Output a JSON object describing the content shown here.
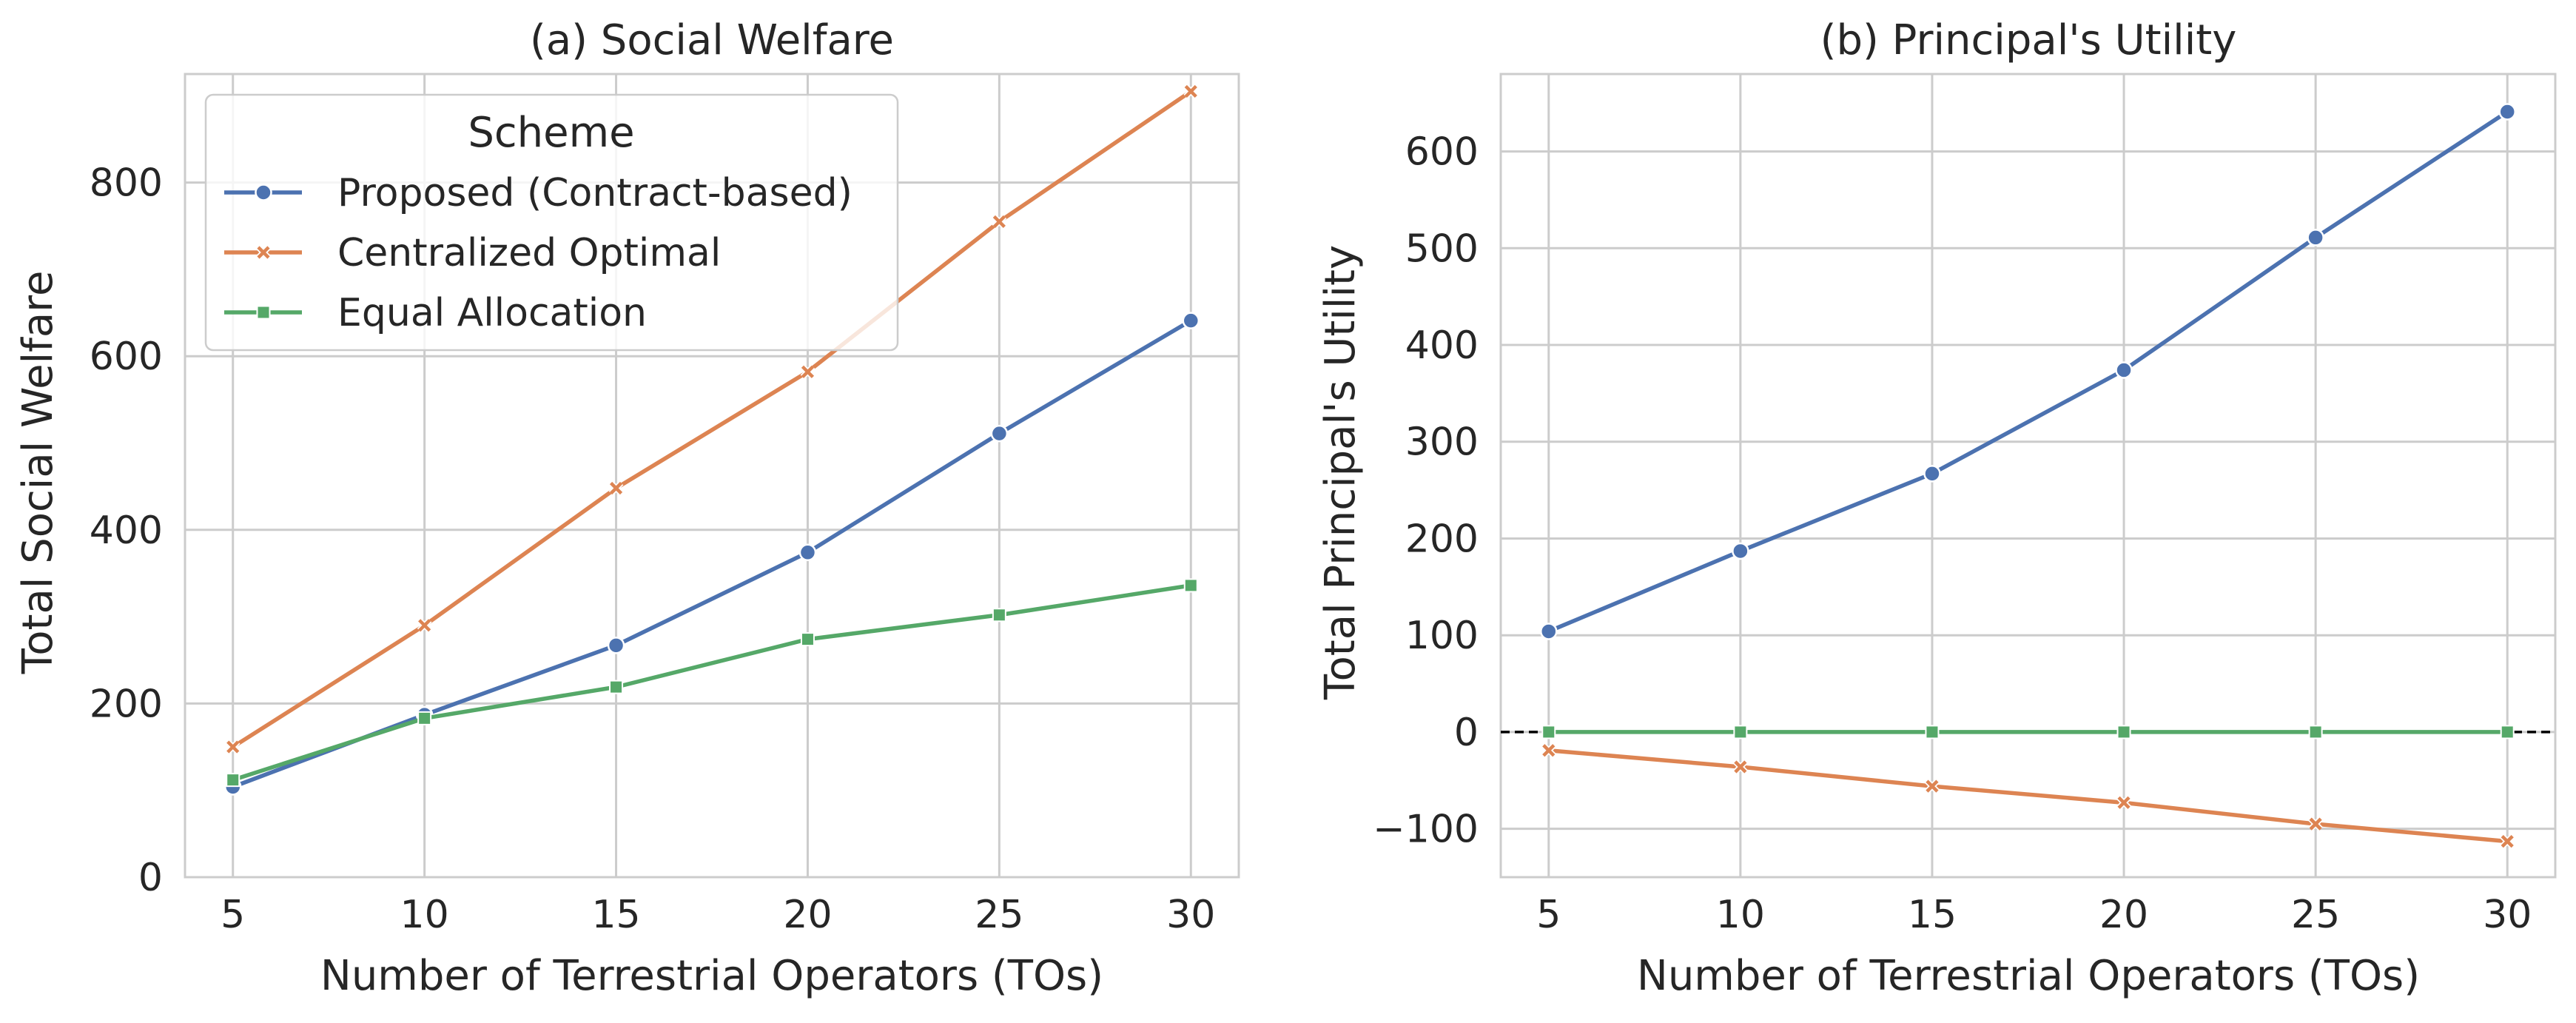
{
  "chart_data": [
    {
      "type": "line",
      "title": "(a) Social Welfare",
      "xlabel": "Number of Terrestrial Operators (TOs)",
      "ylabel": "Total Social Welfare",
      "x": [
        5,
        10,
        15,
        20,
        25,
        30
      ],
      "xticks": [
        "5",
        "10",
        "15",
        "20",
        "25",
        "30"
      ],
      "yticks": [
        "0",
        "200",
        "400",
        "600",
        "800"
      ],
      "ylim": [
        0,
        925
      ],
      "xlim": [
        3.75,
        31.25
      ],
      "grid": true,
      "legend": {
        "title": "Scheme",
        "placement": "upper-left"
      },
      "series": [
        {
          "name": "Proposed (Contract-based)",
          "color": "#4c72b0",
          "marker": "circle",
          "values": [
            104,
            187,
            267,
            374,
            511,
            641
          ]
        },
        {
          "name": "Centralized Optimal",
          "color": "#dd8452",
          "marker": "x",
          "values": [
            150,
            290,
            448,
            582,
            755,
            905
          ]
        },
        {
          "name": "Equal Allocation",
          "color": "#55a868",
          "marker": "square",
          "values": [
            112,
            183,
            219,
            274,
            302,
            336
          ]
        }
      ]
    },
    {
      "type": "line",
      "title": "(b) Principal's Utility",
      "xlabel": "Number of Terrestrial Operators (TOs)",
      "ylabel": "Total Principal's Utility",
      "x": [
        5,
        10,
        15,
        20,
        25,
        30
      ],
      "xticks": [
        "5",
        "10",
        "15",
        "20",
        "25",
        "30"
      ],
      "yticks": [
        "−100",
        "0",
        "100",
        "200",
        "300",
        "400",
        "500",
        "600"
      ],
      "ylim": [
        -150,
        680
      ],
      "xlim": [
        3.75,
        31.25
      ],
      "grid": true,
      "reference_line": {
        "y": 0,
        "style": "dashed",
        "color": "#000000"
      },
      "series": [
        {
          "name": "Proposed (Contract-based)",
          "color": "#4c72b0",
          "marker": "circle",
          "values": [
            104,
            187,
            267,
            374,
            511,
            641
          ]
        },
        {
          "name": "Centralized Optimal",
          "color": "#dd8452",
          "marker": "x",
          "values": [
            -19,
            -36,
            -56,
            -73,
            -95,
            -113
          ]
        },
        {
          "name": "Equal Allocation",
          "color": "#55a868",
          "marker": "square",
          "values": [
            0,
            0,
            0,
            0,
            0,
            0
          ]
        }
      ]
    }
  ]
}
